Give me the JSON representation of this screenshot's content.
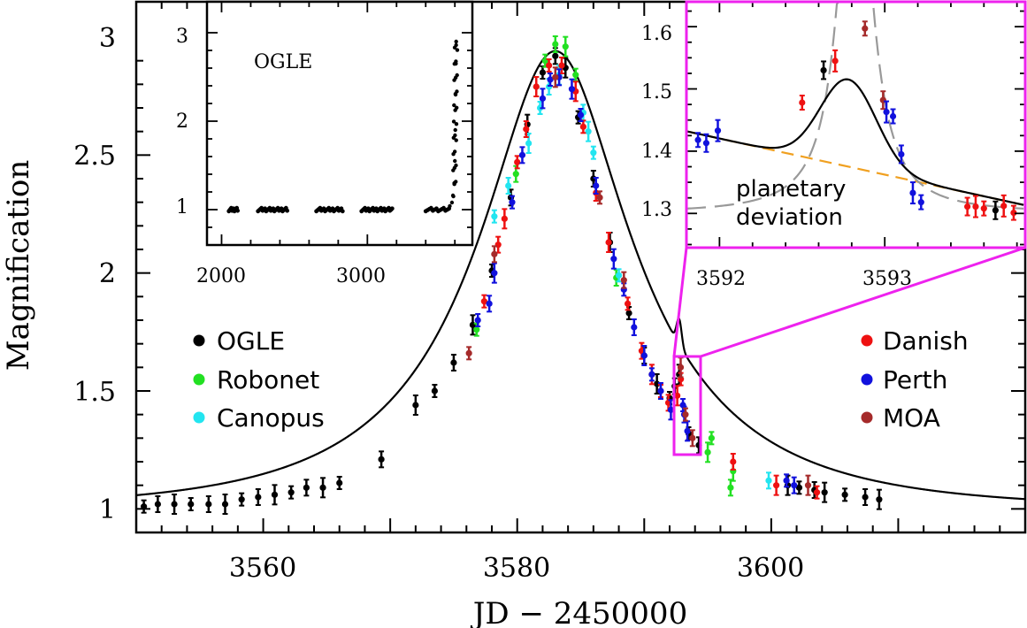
{
  "chart_data": [
    {
      "type": "scatter",
      "role": "main",
      "xlabel": "JD − 2450000",
      "ylabel": "Magnification",
      "xlim": [
        3550,
        3620
      ],
      "ylim": [
        0.9,
        3.15
      ],
      "xticks": [
        3560,
        3580,
        3600
      ],
      "yticks": [
        1,
        1.5,
        2,
        2.5,
        3
      ],
      "ytick_labels": [
        "1",
        "1.5",
        "2",
        "2.5",
        "3"
      ],
      "model": {
        "t0": 3583.0,
        "u0": 0.356,
        "tE": 16.5,
        "planet": {
          "t": 3592.75,
          "amp": 0.11,
          "width": 0.28
        }
      },
      "legend_left": [
        "OGLE",
        "Robonet",
        "Canopus"
      ],
      "legend_right": [
        "Danish",
        "Perth",
        "MOA"
      ],
      "colors": {
        "OGLE": "#000000",
        "Robonet": "#22e022",
        "Canopus": "#22e5f0",
        "Danish": "#ee1111",
        "Perth": "#1111dd",
        "MOA": "#a52a2a",
        "highlight": "#ee22ee",
        "model": "#000000"
      },
      "series": [
        {
          "name": "OGLE",
          "points": [
            [
              3550.6,
              1.01
            ],
            [
              3551.7,
              1.02
            ],
            [
              3553.0,
              1.02
            ],
            [
              3554.3,
              1.02
            ],
            [
              3555.7,
              1.02
            ],
            [
              3557.0,
              1.02
            ],
            [
              3558.3,
              1.04
            ],
            [
              3559.6,
              1.05
            ],
            [
              3560.9,
              1.06
            ],
            [
              3562.2,
              1.07
            ],
            [
              3563.4,
              1.09
            ],
            [
              3564.7,
              1.09
            ],
            [
              3566.0,
              1.11
            ],
            [
              3569.3,
              1.21
            ],
            [
              3572.0,
              1.44
            ],
            [
              3573.5,
              1.5
            ],
            [
              3575.0,
              1.62
            ],
            [
              3576.5,
              1.78
            ],
            [
              3578.0,
              2.01
            ],
            [
              3579.5,
              2.32
            ],
            [
              3580.8,
              2.63
            ],
            [
              3582.0,
              2.85
            ],
            [
              3583.0,
              2.92
            ],
            [
              3583.8,
              2.87
            ],
            [
              3584.8,
              2.66
            ],
            [
              3586.0,
              2.4
            ],
            [
              3587.3,
              2.13
            ],
            [
              3588.8,
              1.83
            ],
            [
              3590.0,
              1.65
            ],
            [
              3591.0,
              1.53
            ],
            [
              3592.0,
              1.47
            ],
            [
              3592.4,
              1.52
            ],
            [
              3592.75,
              1.57
            ],
            [
              3593.5,
              1.32
            ],
            [
              3594.3,
              1.27
            ],
            [
              3601.3,
              1.1
            ],
            [
              3602.2,
              1.09
            ],
            [
              3603.4,
              1.08
            ],
            [
              3604.2,
              1.07
            ],
            [
              3605.8,
              1.06
            ],
            [
              3607.4,
              1.05
            ],
            [
              3608.5,
              1.04
            ]
          ]
        },
        {
          "name": "Robonet",
          "points": [
            [
              3576.8,
              1.76
            ],
            [
              3579.9,
              2.42
            ],
            [
              3581.5,
              2.79
            ],
            [
              3582.2,
              2.9
            ],
            [
              3583.0,
              2.97
            ],
            [
              3583.8,
              2.96
            ],
            [
              3584.6,
              2.84
            ],
            [
              3587.8,
              1.98
            ],
            [
              3595.0,
              1.24
            ],
            [
              3595.3,
              1.3
            ],
            [
              3596.8,
              1.09
            ],
            [
              3597.0,
              1.16
            ]
          ]
        },
        {
          "name": "Canopus",
          "points": [
            [
              3578.2,
              2.24
            ],
            [
              3579.3,
              2.37
            ],
            [
              3580.9,
              2.55
            ],
            [
              3581.8,
              2.7
            ],
            [
              3582.5,
              2.79
            ],
            [
              3583.3,
              2.84
            ],
            [
              3586.0,
              2.51
            ],
            [
              3585.2,
              2.68
            ],
            [
              3585.6,
              2.6
            ],
            [
              3588.0,
              1.99
            ],
            [
              3599.8,
              1.12
            ]
          ]
        },
        {
          "name": "Danish",
          "points": [
            [
              3577.4,
              1.88
            ],
            [
              3578.5,
              2.12
            ],
            [
              3579.0,
              2.23
            ],
            [
              3580.0,
              2.47
            ],
            [
              3580.7,
              2.61
            ],
            [
              3581.5,
              2.79
            ],
            [
              3582.5,
              2.88
            ],
            [
              3583.5,
              2.88
            ],
            [
              3584.6,
              2.77
            ],
            [
              3585.2,
              2.62
            ],
            [
              3586.2,
              2.34
            ],
            [
              3587.2,
              2.13
            ],
            [
              3588.7,
              1.87
            ],
            [
              3589.8,
              1.67
            ],
            [
              3590.6,
              1.57
            ],
            [
              3591.3,
              1.5
            ],
            [
              3591.9,
              1.45
            ],
            [
              3592.6,
              1.48
            ],
            [
              3592.88,
              1.55
            ],
            [
              3597.0,
              1.2
            ],
            [
              3600.4,
              1.1
            ],
            [
              3603.6,
              1.07
            ]
          ]
        },
        {
          "name": "Perth",
          "points": [
            [
              3576.9,
              1.8
            ],
            [
              3577.8,
              1.87
            ],
            [
              3578.2,
              2.0
            ],
            [
              3579.6,
              2.3
            ],
            [
              3580.4,
              2.5
            ],
            [
              3582.0,
              2.74
            ],
            [
              3582.6,
              2.82
            ],
            [
              3583.3,
              2.83
            ],
            [
              3584.3,
              2.78
            ],
            [
              3585.0,
              2.67
            ],
            [
              3586.2,
              2.37
            ],
            [
              3587.6,
              2.06
            ],
            [
              3588.4,
              1.93
            ],
            [
              3589.2,
              1.77
            ],
            [
              3590.0,
              1.65
            ],
            [
              3590.6,
              1.57
            ],
            [
              3591.3,
              1.5
            ],
            [
              3592.1,
              1.42
            ],
            [
              3593.05,
              1.44
            ],
            [
              3593.15,
              1.4
            ],
            [
              3593.4,
              1.33
            ],
            [
              3601.2,
              1.12
            ],
            [
              3601.8,
              1.1
            ]
          ]
        },
        {
          "name": "MOA",
          "points": [
            [
              3576.2,
              1.66
            ],
            [
              3578.2,
              2.08
            ],
            [
              3583.0,
              2.83
            ],
            [
              3586.5,
              2.32
            ],
            [
              3588.4,
              1.97
            ],
            [
              3592.87,
              1.6
            ],
            [
              3593.25,
              1.4
            ],
            [
              3593.8,
              1.3
            ],
            [
              3602.9,
              1.1
            ]
          ]
        }
      ]
    },
    {
      "type": "scatter",
      "role": "inset-baseline",
      "label": "OGLE",
      "xlim": [
        1900,
        3720
      ],
      "ylim": [
        0.6,
        3.35
      ],
      "xticks": [
        2000,
        3000
      ],
      "yticks": [
        1,
        2,
        3
      ],
      "x_clusters": [
        [
          2050,
          2110,
          12
        ],
        [
          2250,
          2450,
          26
        ],
        [
          2650,
          2830,
          22
        ],
        [
          2960,
          3170,
          28
        ],
        [
          3400,
          3560,
          14
        ]
      ],
      "rise": [
        [
          3565,
          1.04
        ],
        [
          3580,
          1.08
        ],
        [
          3590,
          1.15
        ],
        [
          3596,
          1.3
        ],
        [
          3600,
          1.55
        ],
        [
          3603,
          1.9
        ],
        [
          3605,
          2.3
        ],
        [
          3607,
          2.65
        ],
        [
          3609,
          2.9
        ]
      ]
    },
    {
      "type": "scatter",
      "role": "inset-planet",
      "note": "planetary\ndeviation",
      "xlim": [
        3591.8,
        3593.85
      ],
      "ylim": [
        1.245,
        1.64
      ],
      "xticks": [
        3592,
        3593
      ],
      "yticks": [
        1.3,
        1.4,
        1.5,
        1.6
      ],
      "points": [
        {
          "s": "Perth",
          "x": 3591.87,
          "y": 1.418
        },
        {
          "s": "Perth",
          "x": 3591.92,
          "y": 1.413
        },
        {
          "s": "Perth",
          "x": 3591.99,
          "y": 1.433
        },
        {
          "s": "Danish",
          "x": 3592.5,
          "y": 1.478
        },
        {
          "s": "OGLE",
          "x": 3592.63,
          "y": 1.53
        },
        {
          "s": "Danish",
          "x": 3592.7,
          "y": 1.545
        },
        {
          "s": "MOA",
          "x": 3592.88,
          "y": 1.597
        },
        {
          "s": "MOA",
          "x": 3592.99,
          "y": 1.482
        },
        {
          "s": "Perth",
          "x": 3593.01,
          "y": 1.463
        },
        {
          "s": "Perth",
          "x": 3593.05,
          "y": 1.456
        },
        {
          "s": "Perth",
          "x": 3593.1,
          "y": 1.395
        },
        {
          "s": "Perth",
          "x": 3593.17,
          "y": 1.333
        },
        {
          "s": "Perth",
          "x": 3593.22,
          "y": 1.318
        },
        {
          "s": "Danish",
          "x": 3593.5,
          "y": 1.311
        },
        {
          "s": "Danish",
          "x": 3593.55,
          "y": 1.311
        },
        {
          "s": "Danish",
          "x": 3593.6,
          "y": 1.308
        },
        {
          "s": "OGLE",
          "x": 3593.67,
          "y": 1.305
        },
        {
          "s": "Danish",
          "x": 3593.72,
          "y": 1.312
        },
        {
          "s": "Danish",
          "x": 3593.78,
          "y": 1.301
        }
      ]
    }
  ]
}
